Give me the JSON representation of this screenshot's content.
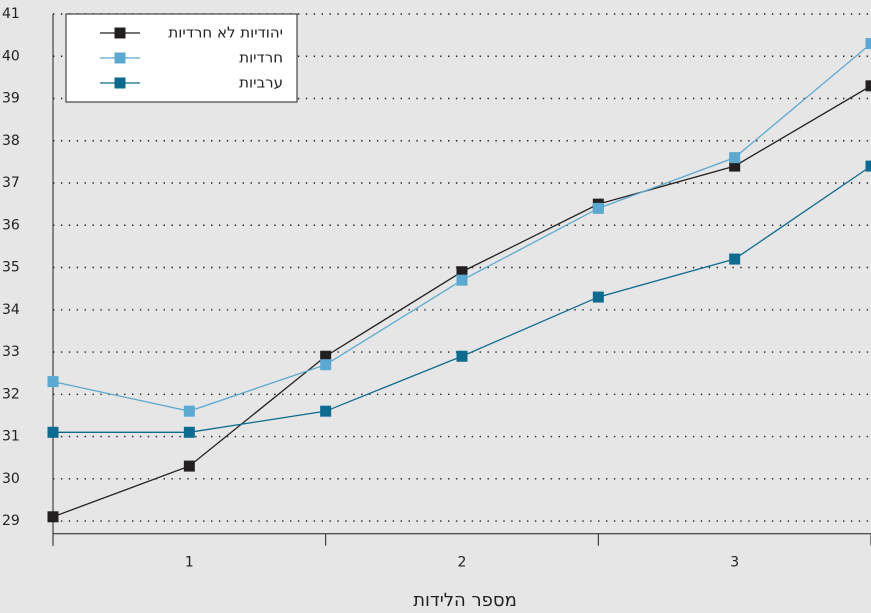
{
  "chart_data": {
    "type": "line",
    "xlabel": "מספר הלידות",
    "categories": [
      null,
      "1",
      null,
      "2",
      null,
      "3",
      null
    ],
    "series": [
      {
        "name": "יהודיות לא חרדיות",
        "color": "#231f20",
        "values": [
          29.1,
          30.3,
          32.9,
          34.9,
          36.5,
          37.4,
          39.3
        ]
      },
      {
        "name": "חרדיות",
        "color": "#5ba8d0",
        "values": [
          32.3,
          31.6,
          32.7,
          34.7,
          36.4,
          37.6,
          40.3
        ]
      },
      {
        "name": "ערביות",
        "color": "#0e6a8f",
        "values": [
          31.1,
          31.1,
          31.6,
          32.9,
          34.3,
          35.2,
          37.4
        ]
      }
    ],
    "ylim": [
      28.7,
      41
    ],
    "yticks": [
      29,
      30,
      31,
      32,
      33,
      34,
      35,
      36,
      37,
      38,
      39,
      40,
      41
    ],
    "grid": true,
    "legend": "top-left"
  }
}
